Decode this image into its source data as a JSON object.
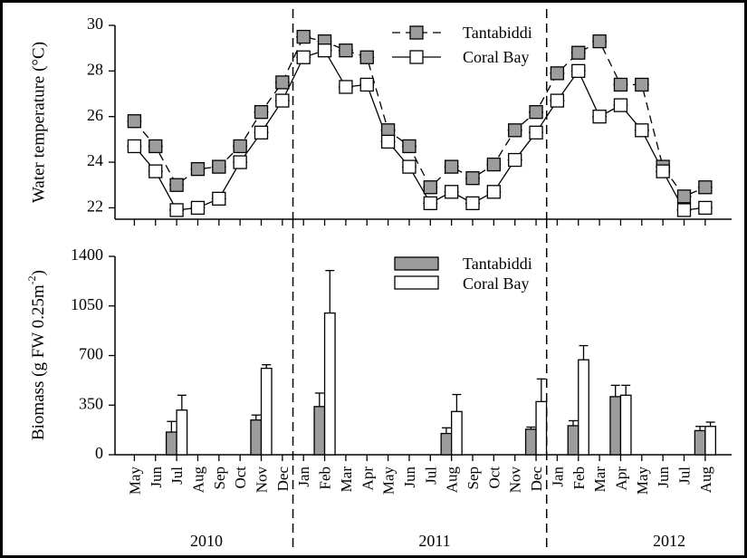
{
  "chart_data": [
    {
      "type": "line",
      "ylabel": "Water temperature (°C)",
      "ylim": [
        21.5,
        30
      ],
      "yticks": [
        "22",
        "24",
        "26",
        "28",
        "30"
      ],
      "grid": false,
      "legend_position": "top-right",
      "x_index_range": [
        0,
        27
      ],
      "series": [
        {
          "name": "Tantabiddi",
          "style": "dashed, grey filled squares",
          "x": [
            0,
            1,
            2,
            3,
            4,
            5,
            6,
            7,
            8,
            9,
            10,
            11,
            12,
            13,
            14,
            15,
            16,
            17,
            18,
            19,
            20,
            21,
            22,
            23,
            24,
            25,
            26,
            27
          ],
          "values": [
            25.8,
            24.7,
            23.0,
            23.7,
            23.8,
            24.7,
            26.2,
            27.5,
            29.5,
            29.3,
            28.9,
            28.6,
            25.4,
            24.7,
            22.9,
            23.8,
            23.3,
            23.9,
            25.4,
            26.2,
            27.9,
            28.8,
            29.3,
            27.4,
            27.4,
            23.8,
            22.5,
            22.9
          ]
        },
        {
          "name": "Coral Bay",
          "style": "solid, open squares",
          "x": [
            0,
            1,
            2,
            3,
            4,
            5,
            6,
            7,
            8,
            9,
            10,
            11,
            12,
            13,
            14,
            15,
            16,
            17,
            18,
            19,
            20,
            21,
            22,
            23,
            24,
            25,
            26,
            27
          ],
          "values": [
            24.7,
            23.6,
            21.9,
            22.0,
            22.4,
            24.0,
            25.3,
            26.7,
            28.6,
            28.9,
            27.3,
            27.4,
            24.9,
            23.8,
            22.2,
            22.7,
            22.2,
            22.7,
            24.1,
            25.3,
            26.7,
            28.0,
            26.0,
            26.5,
            25.4,
            23.6,
            21.9,
            22.0
          ]
        }
      ]
    },
    {
      "type": "bar",
      "ylabel": "Biomass (g FW 0.25m",
      "ylabel_sup": "-2",
      "ylabel_end": ")",
      "ylim": [
        0,
        1400
      ],
      "yticks": [
        "0",
        "350",
        "700",
        "1050",
        "1400"
      ],
      "grid": false,
      "legend_position": "top-right",
      "series": [
        {
          "name": "Tantabiddi",
          "color": "#9c9c9c",
          "x": [
            2,
            6,
            9,
            15,
            19,
            21,
            23,
            27
          ],
          "values": [
            160,
            245,
            340,
            150,
            180,
            205,
            410,
            170
          ],
          "errors": [
            75,
            35,
            95,
            40,
            15,
            35,
            80,
            30
          ]
        },
        {
          "name": "Coral Bay",
          "color": "#ffffff",
          "x": [
            2,
            6,
            9,
            15,
            19,
            21,
            23,
            27
          ],
          "values": [
            315,
            610,
            1000,
            305,
            375,
            670,
            420,
            200
          ],
          "errors": [
            105,
            25,
            300,
            120,
            160,
            100,
            70,
            30
          ]
        }
      ],
      "months": [
        "May",
        "Jun",
        "Jul",
        "Aug",
        "Sep",
        "Oct",
        "Nov",
        "Dec",
        "Jan",
        "Feb",
        "Mar",
        "Apr",
        "May",
        "Jun",
        "Jul",
        "Aug",
        "Sep",
        "Oct",
        "Nov",
        "Dec",
        "Jan",
        "Feb",
        "Mar",
        "Apr",
        "May",
        "Jun",
        "Jul",
        "Aug"
      ],
      "years": [
        "2010",
        "2011",
        "2012"
      ],
      "year_breaks_after_index": [
        7.5,
        19.5
      ]
    }
  ]
}
